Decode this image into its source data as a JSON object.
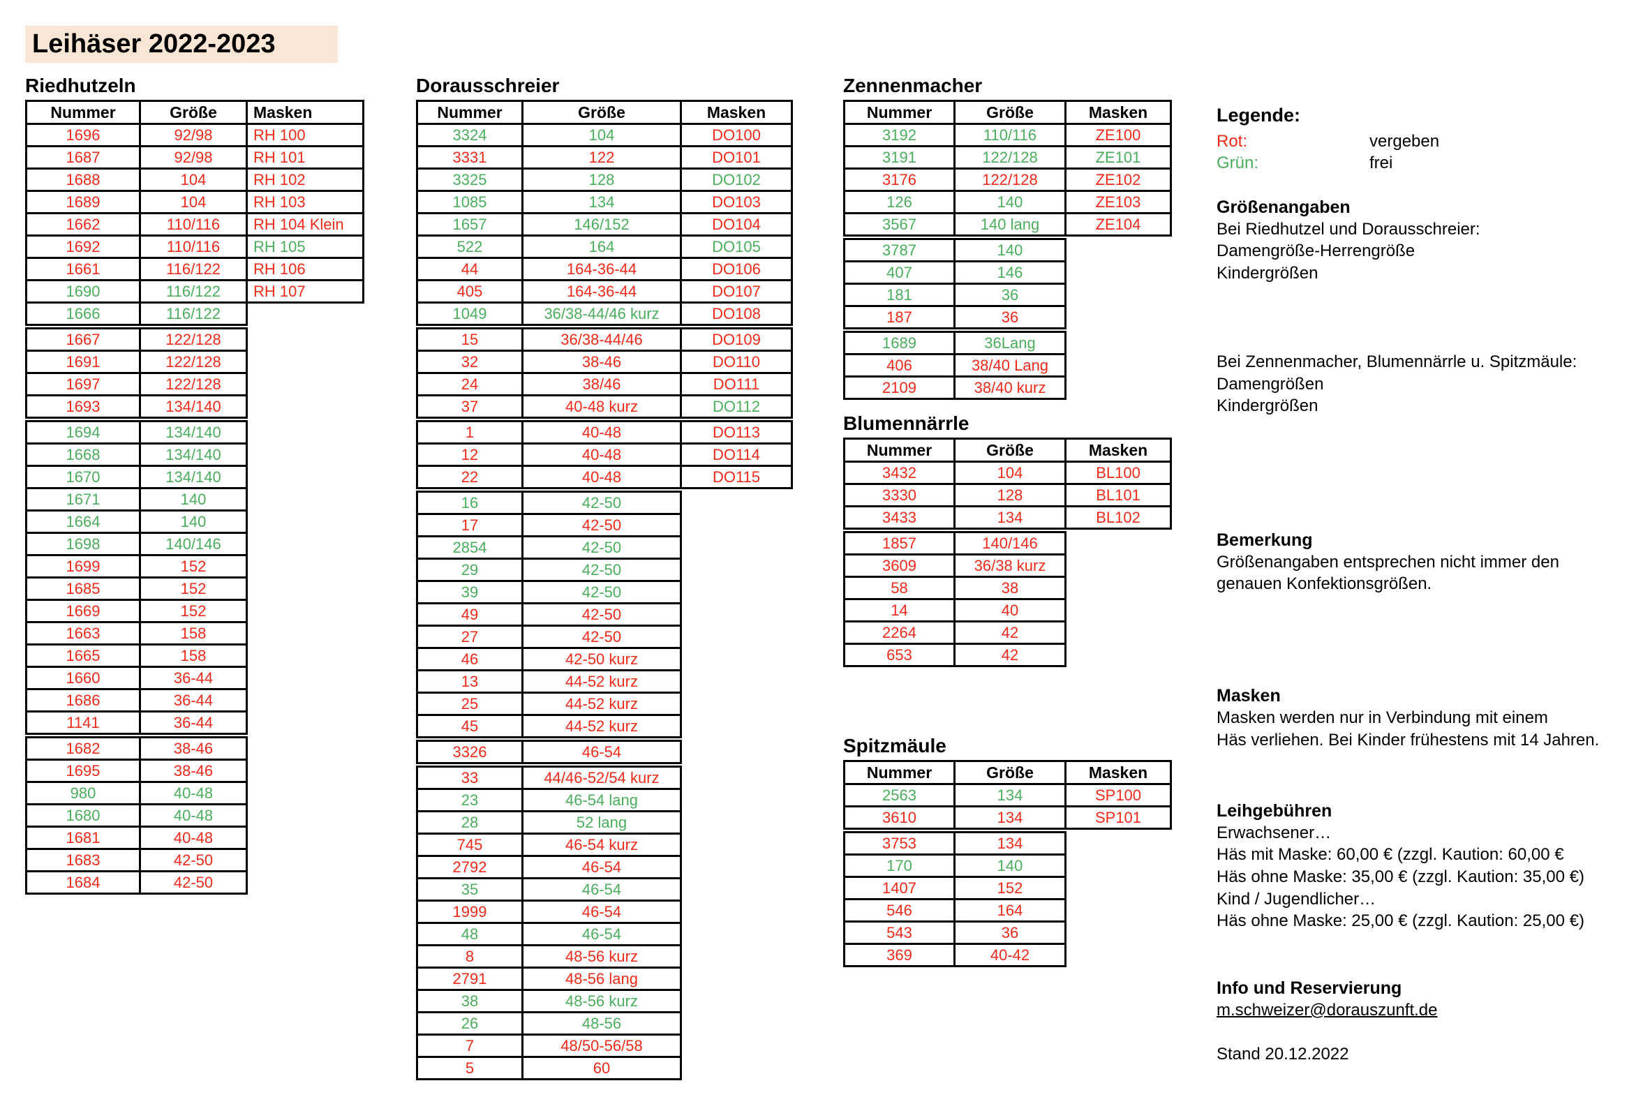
{
  "title": "Leihäser 2022-2023",
  "colors": {
    "vergeben": "#ee2b1b",
    "frei": "#4bad5d",
    "title_background": "#fbe5d5"
  },
  "columns": [
    "Nummer",
    "Größe",
    "Masken"
  ],
  "tables": [
    {
      "id": "riedhutzeln",
      "name": "Riedhutzeln",
      "gaps_after": [
        9,
        13,
        27
      ],
      "rows": [
        [
          "1696",
          "92/98",
          "RH 100",
          "r",
          "r"
        ],
        [
          "1687",
          "92/98",
          "RH 101",
          "r",
          "r"
        ],
        [
          "1688",
          "104",
          "RH 102",
          "r",
          "r"
        ],
        [
          "1689",
          "104",
          "RH 103",
          "r",
          "r"
        ],
        [
          "1662",
          "110/116",
          "RH 104 Klein",
          "r",
          "r"
        ],
        [
          "1692",
          "110/116",
          "RH 105",
          "r",
          "g"
        ],
        [
          "1661",
          "116/122",
          "RH 106",
          "r",
          "r"
        ],
        [
          "1690",
          "116/122",
          "RH 107",
          "g",
          "r"
        ],
        [
          "1666",
          "116/122",
          null,
          "g",
          null
        ],
        [
          "1667",
          "122/128",
          null,
          "r",
          null
        ],
        [
          "1691",
          "122/128",
          null,
          "r",
          null
        ],
        [
          "1697",
          "122/128",
          null,
          "r",
          null
        ],
        [
          "1693",
          "134/140",
          null,
          "r",
          null
        ],
        [
          "1694",
          "134/140",
          null,
          "g",
          null
        ],
        [
          "1668",
          "134/140",
          null,
          "g",
          null
        ],
        [
          "1670",
          "134/140",
          null,
          "g",
          null
        ],
        [
          "1671",
          "140",
          null,
          "g",
          null
        ],
        [
          "1664",
          "140",
          null,
          "g",
          null
        ],
        [
          "1698",
          "140/146",
          null,
          "g",
          null
        ],
        [
          "1699",
          "152",
          null,
          "r",
          null
        ],
        [
          "1685",
          "152",
          null,
          "r",
          null
        ],
        [
          "1669",
          "152",
          null,
          "r",
          null
        ],
        [
          "1663",
          "158",
          null,
          "r",
          null
        ],
        [
          "1665",
          "158",
          null,
          "r",
          null
        ],
        [
          "1660",
          "36-44",
          null,
          "r",
          null
        ],
        [
          "1686",
          "36-44",
          null,
          "r",
          null
        ],
        [
          "1141",
          "36-44",
          null,
          "r",
          null
        ],
        [
          "1682",
          "38-46",
          null,
          "r",
          null
        ],
        [
          "1695",
          "38-46",
          null,
          "r",
          null
        ],
        [
          "980",
          "40-48",
          null,
          "g",
          null
        ],
        [
          "1680",
          "40-48",
          null,
          "g",
          null
        ],
        [
          "1681",
          "40-48",
          null,
          "r",
          null
        ],
        [
          "1683",
          "42-50",
          null,
          "r",
          null
        ],
        [
          "1684",
          "42-50",
          null,
          "r",
          null
        ]
      ]
    },
    {
      "id": "dorausschreier",
      "name": "Dorausschreier",
      "gaps_after": [
        9,
        13,
        16,
        27,
        28
      ],
      "rows": [
        [
          "3324",
          "104",
          "DO100",
          "g",
          "r"
        ],
        [
          "3331",
          "122",
          "DO101",
          "r",
          "r"
        ],
        [
          "3325",
          "128",
          "DO102",
          "g",
          "g"
        ],
        [
          "1085",
          "134",
          "DO103",
          "g",
          "r"
        ],
        [
          "1657",
          "146/152",
          "DO104",
          "g",
          "r"
        ],
        [
          "522",
          "164",
          "DO105",
          "g",
          "g"
        ],
        [
          "44",
          "164-36-44",
          "DO106",
          "r",
          "r"
        ],
        [
          "405",
          "164-36-44",
          "DO107",
          "r",
          "r"
        ],
        [
          "1049",
          "36/38-44/46 kurz",
          "DO108",
          "g",
          "r"
        ],
        [
          "15",
          "36/38-44/46",
          "DO109",
          "r",
          "r"
        ],
        [
          "32",
          "38-46",
          "DO110",
          "r",
          "r"
        ],
        [
          "24",
          "38/46",
          "DO111",
          "r",
          "r"
        ],
        [
          "37",
          "40-48 kurz",
          "DO112",
          "r",
          "g"
        ],
        [
          "1",
          "40-48",
          "DO113",
          "r",
          "r"
        ],
        [
          "12",
          "40-48",
          "DO114",
          "r",
          "r"
        ],
        [
          "22",
          "40-48",
          "DO115",
          "r",
          "r"
        ],
        [
          "16",
          "42-50",
          null,
          "g",
          null
        ],
        [
          "17",
          "42-50",
          null,
          "r",
          null
        ],
        [
          "2854",
          "42-50",
          null,
          "g",
          null
        ],
        [
          "29",
          "42-50",
          null,
          "g",
          null
        ],
        [
          "39",
          "42-50",
          null,
          "g",
          null
        ],
        [
          "49",
          "42-50",
          null,
          "r",
          null
        ],
        [
          "27",
          "42-50",
          null,
          "r",
          null
        ],
        [
          "46",
          "42-50 kurz",
          null,
          "r",
          null
        ],
        [
          "13",
          "44-52 kurz",
          null,
          "r",
          null
        ],
        [
          "25",
          "44-52 kurz",
          null,
          "r",
          null
        ],
        [
          "45",
          "44-52 kurz",
          null,
          "r",
          null
        ],
        [
          "3326",
          "46-54",
          null,
          "r",
          null
        ],
        [
          "33",
          "44/46-52/54 kurz",
          null,
          "r",
          null
        ],
        [
          "23",
          "46-54 lang",
          null,
          "g",
          null
        ],
        [
          "28",
          "52 lang",
          null,
          "g",
          null
        ],
        [
          "745",
          "46-54 kurz",
          null,
          "r",
          null
        ],
        [
          "2792",
          "46-54",
          null,
          "r",
          null
        ],
        [
          "35",
          "46-54",
          null,
          "g",
          null
        ],
        [
          "1999",
          "46-54",
          null,
          "r",
          null
        ],
        [
          "48",
          "46-54",
          null,
          "g",
          null
        ],
        [
          "8",
          "48-56 kurz",
          null,
          "r",
          null
        ],
        [
          "2791",
          "48-56 lang",
          null,
          "r",
          null
        ],
        [
          "38",
          "48-56 kurz",
          null,
          "g",
          null
        ],
        [
          "26",
          "48-56",
          null,
          "g",
          null
        ],
        [
          "7",
          "48/50-56/58",
          null,
          "r",
          null
        ],
        [
          "5",
          "60",
          null,
          "r",
          null
        ]
      ]
    },
    {
      "id": "zennenmacher",
      "name": "Zennenmacher",
      "gaps_after": [
        5,
        9
      ],
      "rows": [
        [
          "3192",
          "110/116",
          "ZE100",
          "g",
          "r"
        ],
        [
          "3191",
          "122/128",
          "ZE101",
          "g",
          "g"
        ],
        [
          "3176",
          "122/128",
          "ZE102",
          "r",
          "r"
        ],
        [
          "126",
          "140",
          "ZE103",
          "g",
          "r"
        ],
        [
          "3567",
          "140 lang",
          "ZE104",
          "g",
          "r"
        ],
        [
          "3787",
          "140",
          null,
          "g",
          null
        ],
        [
          "407",
          "146",
          null,
          "g",
          null
        ],
        [
          "181",
          "36",
          null,
          "g",
          null
        ],
        [
          "187",
          "36",
          null,
          "r",
          null
        ],
        [
          "1689",
          "36Lang",
          null,
          "g",
          null
        ],
        [
          "406",
          "38/40 Lang",
          null,
          "r",
          null
        ],
        [
          "2109",
          "38/40 kurz",
          null,
          "r",
          null
        ]
      ]
    },
    {
      "id": "blumennaerrle",
      "name": "Blumennärrle",
      "gaps_after": [
        3
      ],
      "rows": [
        [
          "3432",
          "104",
          "BL100",
          "r",
          "r"
        ],
        [
          "3330",
          "128",
          "BL101",
          "r",
          "r"
        ],
        [
          "3433",
          "134",
          "BL102",
          "r",
          "r"
        ],
        [
          "1857",
          "140/146",
          null,
          "r",
          null
        ],
        [
          "3609",
          "36/38 kurz",
          null,
          "r",
          null
        ],
        [
          "58",
          "38",
          null,
          "r",
          null
        ],
        [
          "14",
          "40",
          null,
          "r",
          null
        ],
        [
          "2264",
          "42",
          null,
          "r",
          null
        ],
        [
          "653",
          "42",
          null,
          "r",
          null
        ]
      ]
    },
    {
      "id": "spitzmaeule",
      "name": "Spitzmäule",
      "gaps_after": [
        2
      ],
      "rows": [
        [
          "2563",
          "134",
          "SP100",
          "g",
          "r"
        ],
        [
          "3610",
          "134",
          "SP101",
          "r",
          "r"
        ],
        [
          "3753",
          "134",
          null,
          "r",
          null
        ],
        [
          "170",
          "140",
          null,
          "g",
          null
        ],
        [
          "1407",
          "152",
          null,
          "r",
          null
        ],
        [
          "546",
          "164",
          null,
          "r",
          null
        ],
        [
          "543",
          "36",
          null,
          "r",
          null
        ],
        [
          "369",
          "40-42",
          null,
          "r",
          null
        ]
      ]
    }
  ],
  "legend": {
    "heading": "Legende:",
    "rot_label": "Rot:",
    "rot_value": "vergeben",
    "gruen_label": "Grün:",
    "gruen_value": "frei",
    "sizes_heading": "Größenangaben",
    "sizes_line1": "Bei Riedhutzel und Dorausschreier:",
    "sizes_line2": "Damengröße-Herrengröße",
    "sizes_line3": "Kindergrößen",
    "sizes2_line1": "Bei Zennenmacher, Blumennärrle u. Spitzmäule:",
    "sizes2_line2": "Damengrößen",
    "sizes2_line3": "Kindergrößen",
    "note_heading": "Bemerkung",
    "note_line1": "Größenangaben entsprechen nicht immer den",
    "note_line2": "genauen Konfektionsgrößen.",
    "masks_heading": "Masken",
    "masks_line1": "Masken werden nur in Verbindung mit einem",
    "masks_line2": "Häs verliehen. Bei Kinder frühestens mit 14 Jahren.",
    "fees_heading": "Leihgebühren",
    "fees_line1": "Erwachsener…",
    "fees_line2": "Häs mit Maske: 60,00 € (zzgl. Kaution: 60,00 €",
    "fees_line3": "Häs ohne Maske: 35,00 € (zzgl. Kaution: 35,00 €)",
    "fees_line4": "Kind / Jugendlicher…",
    "fees_line5": "Häs ohne Maske: 25,00 € (zzgl. Kaution: 25,00 €)",
    "info_heading": "Info und Reservierung",
    "info_email": "m.schweizer@dorauszunft.de",
    "stand": "Stand 20.12.2022"
  }
}
